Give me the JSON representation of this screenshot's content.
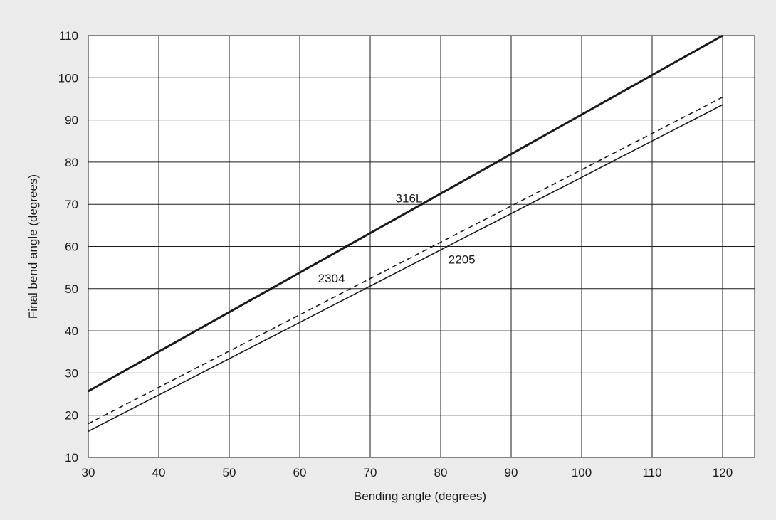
{
  "chart_data": {
    "type": "line",
    "title": "",
    "xlabel": "Bending angle (degrees)",
    "ylabel": "Final bend angle (degrees)",
    "xlim": [
      30,
      125
    ],
    "ylim": [
      10,
      110
    ],
    "x_ticks": [
      30,
      40,
      50,
      60,
      70,
      80,
      90,
      100,
      110,
      120
    ],
    "y_ticks": [
      10,
      20,
      30,
      40,
      50,
      60,
      70,
      80,
      90,
      100,
      110
    ],
    "grid": true,
    "legend": "none (inline labels)",
    "series": [
      {
        "name": "316L",
        "line_style": "solid-thick",
        "color": "#1a1a1a",
        "x": [
          30,
          120
        ],
        "y": [
          25.7,
          110
        ],
        "label_at": [
          75.5,
          71.5
        ]
      },
      {
        "name": "2304",
        "line_style": "dashed",
        "color": "#1a1a1a",
        "x": [
          30,
          120
        ],
        "y": [
          18,
          95.4
        ],
        "label_at": [
          64.5,
          52.5
        ]
      },
      {
        "name": "2205",
        "line_style": "solid-thin",
        "color": "#1a1a1a",
        "x": [
          30,
          120
        ],
        "y": [
          16.2,
          93.6
        ],
        "label_at": [
          83,
          57
        ]
      }
    ]
  }
}
